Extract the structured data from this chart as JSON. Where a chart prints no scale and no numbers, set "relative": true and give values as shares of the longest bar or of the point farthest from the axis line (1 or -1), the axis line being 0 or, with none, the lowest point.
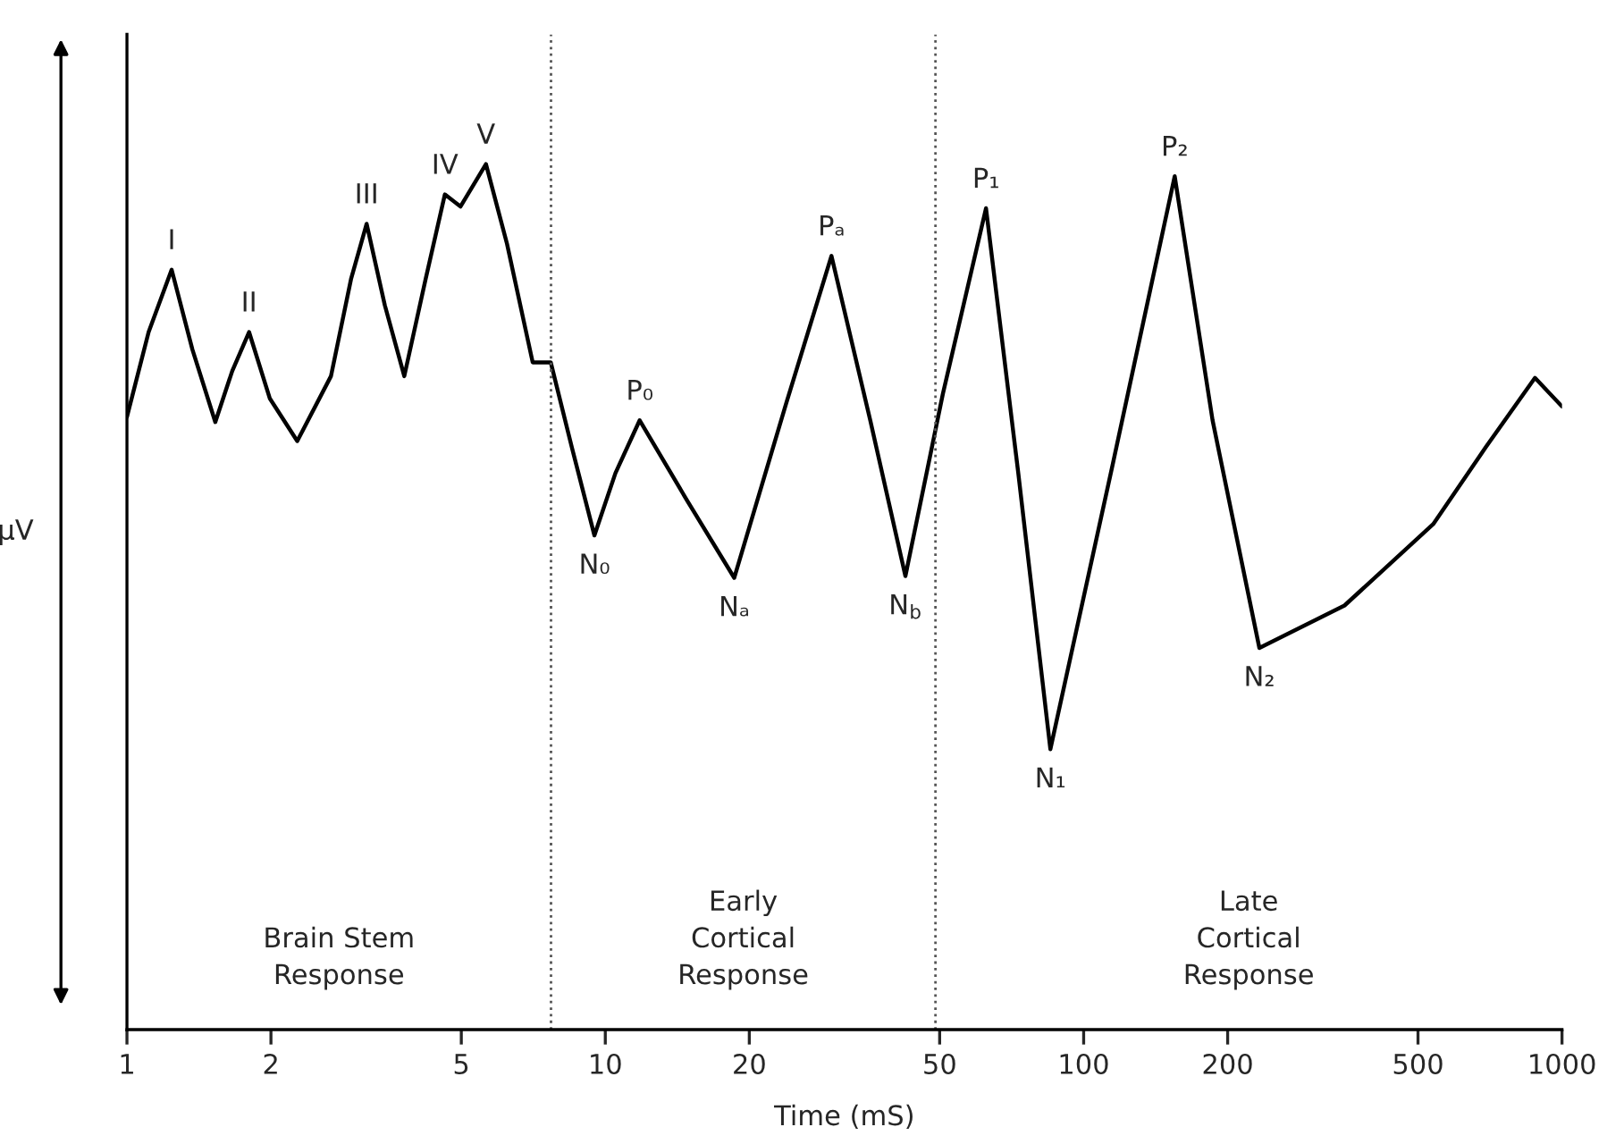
{
  "chart_data": {
    "type": "line",
    "relative": true,
    "xlabel": "Time (mS)",
    "ylabel": "µV",
    "color": "#000000",
    "grid": false,
    "legend": false,
    "marker": "none",
    "line_style": "solid",
    "log": "x",
    "xlim": [
      1,
      1000
    ],
    "xticks": [
      1,
      2,
      5,
      10,
      20,
      50,
      100,
      200,
      500,
      1000
    ],
    "x": [
      1,
      1.11,
      1.24,
      1.37,
      1.53,
      1.66,
      1.8,
      1.99,
      2.27,
      2.67,
      2.94,
      3.17,
      3.46,
      3.8,
      4.21,
      4.62,
      4.98,
      5.63,
      6.23,
      7.05,
      7.69,
      8.51,
      9.49,
      10.5,
      11.8,
      14.8,
      18.6,
      23.9,
      29.7,
      35.8,
      42.4,
      50.8,
      62.5,
      73.0,
      85.2,
      115,
      155,
      186,
      233,
      351,
      538,
      693,
      878,
      1000
    ],
    "values": [
      0.708,
      0.806,
      0.878,
      0.786,
      0.702,
      0.761,
      0.806,
      0.729,
      0.68,
      0.755,
      0.867,
      0.931,
      0.837,
      0.755,
      0.867,
      0.965,
      0.951,
      1.0,
      0.908,
      0.771,
      0.771,
      0.673,
      0.571,
      0.643,
      0.704,
      0.612,
      0.522,
      0.724,
      0.894,
      0.704,
      0.524,
      0.735,
      0.949,
      0.643,
      0.324,
      0.653,
      0.986,
      0.704,
      0.441,
      0.49,
      0.584,
      0.673,
      0.753,
      0.72
    ],
    "ref_lines": [
      {
        "axis": "x",
        "value": 7.7,
        "line_style": "dotted",
        "color": "#555555"
      },
      {
        "axis": "x",
        "value": 49,
        "line_style": "dotted",
        "color": "#555555"
      }
    ],
    "annotations": [
      {
        "text": "I",
        "x": 1.24,
        "y": 0.878
      },
      {
        "text": "II",
        "x": 1.8,
        "y": 0.806
      },
      {
        "text": "III",
        "x": 3.17,
        "y": 0.931
      },
      {
        "text": "IV",
        "x": 4.62,
        "y": 0.965
      },
      {
        "text": "V",
        "x": 5.63,
        "y": 1.0
      },
      {
        "text": "N₀",
        "x": 9.49,
        "y": 0.571
      },
      {
        "text": "P₀",
        "x": 11.8,
        "y": 0.704
      },
      {
        "text": "Nₐ",
        "x": 18.6,
        "y": 0.522
      },
      {
        "text": "Pₐ",
        "x": 29.7,
        "y": 0.894
      },
      {
        "text": "N$_{b}$",
        "x": 42.4,
        "y": 0.524
      },
      {
        "text": "P₁",
        "x": 62.5,
        "y": 0.949
      },
      {
        "text": "N₁",
        "x": 85.2,
        "y": 0.324
      },
      {
        "text": "P₂",
        "x": 155,
        "y": 0.986
      },
      {
        "text": "N₂",
        "x": 233,
        "y": 0.441
      },
      "Brain Stem\nResponse",
      "Early\nCortical\nResponse",
      "Late\nCortical\nResponse"
    ]
  }
}
